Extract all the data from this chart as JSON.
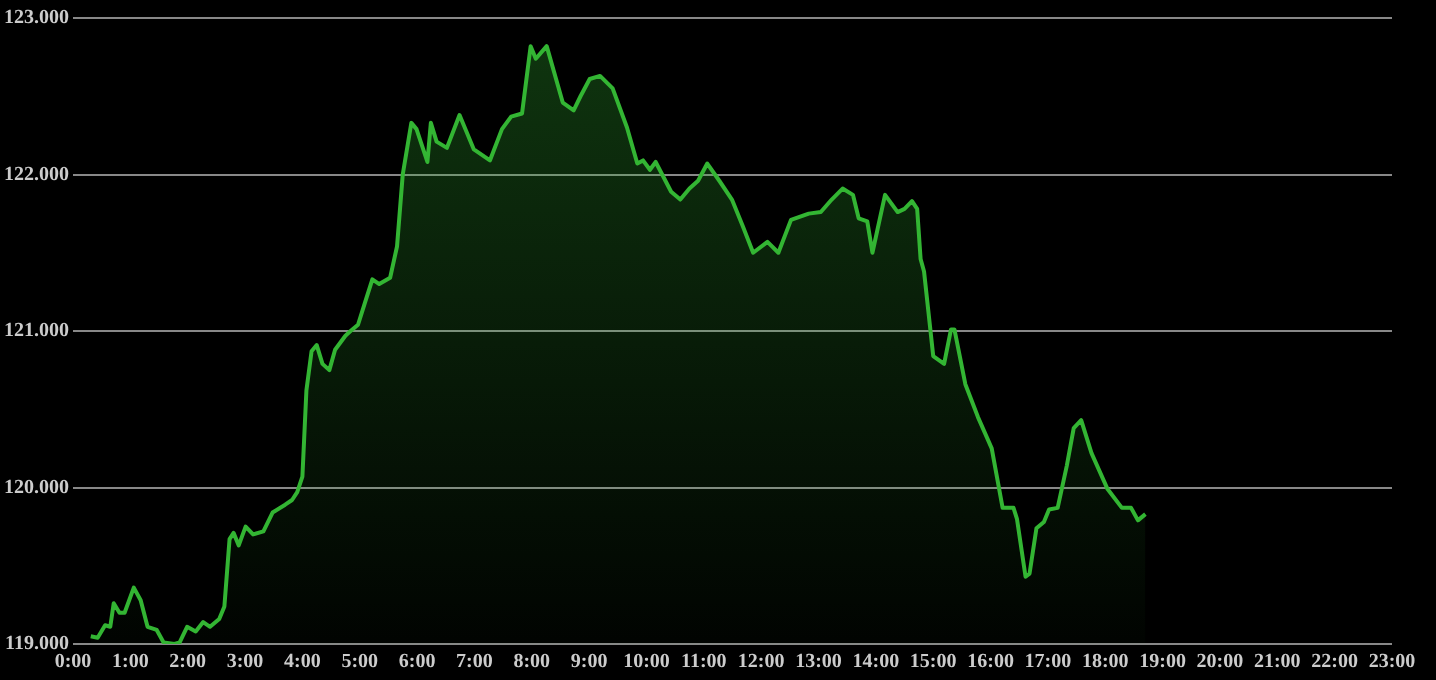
{
  "chart_data": {
    "type": "area",
    "x": [
      0.31,
      0.43,
      0.56,
      0.65,
      0.71,
      0.81,
      0.9,
      1.06,
      1.18,
      1.3,
      1.46,
      1.58,
      1.77,
      1.86,
      1.99,
      2.14,
      2.27,
      2.39,
      2.55,
      2.64,
      2.73,
      2.8,
      2.89,
      3.01,
      3.14,
      3.32,
      3.48,
      3.7,
      3.82,
      3.91,
      4.0,
      4.07,
      4.16,
      4.25,
      4.35,
      4.47,
      4.57,
      4.75,
      4.84,
      4.97,
      5.09,
      5.22,
      5.34,
      5.53,
      5.65,
      5.75,
      5.9,
      5.99,
      6.18,
      6.24,
      6.34,
      6.52,
      6.74,
      6.99,
      7.27,
      7.48,
      7.64,
      7.83,
      7.98,
      8.07,
      8.26,
      8.54,
      8.73,
      8.85,
      9.01,
      9.19,
      9.41,
      9.66,
      9.84,
      9.94,
      10.06,
      10.16,
      10.43,
      10.59,
      10.75,
      10.9,
      11.06,
      11.27,
      11.49,
      11.68,
      11.86,
      12.11,
      12.3,
      12.52,
      12.83,
      13.04,
      13.23,
      13.42,
      13.6,
      13.7,
      13.85,
      13.94,
      14.16,
      14.38,
      14.5,
      14.63,
      14.72,
      14.78,
      14.84,
      15.0,
      15.19,
      15.31,
      15.37,
      15.56,
      15.78,
      16.02,
      16.21,
      16.4,
      16.46,
      16.61,
      16.68,
      16.8,
      16.93,
      17.02,
      17.17,
      17.33,
      17.45,
      17.58,
      17.76,
      18.04,
      18.29,
      18.45,
      18.57,
      18.7
    ],
    "series": [
      {
        "color": "#33b533",
        "values": [
          119.05,
          119.04,
          119.12,
          119.11,
          119.26,
          119.2,
          119.2,
          119.36,
          119.28,
          119.11,
          119.09,
          119.01,
          119.0,
          119.01,
          119.11,
          119.08,
          119.14,
          119.11,
          119.16,
          119.24,
          119.67,
          119.71,
          119.63,
          119.75,
          119.7,
          119.72,
          119.84,
          119.89,
          119.92,
          119.97,
          120.07,
          120.62,
          120.87,
          120.91,
          120.79,
          120.75,
          120.88,
          120.97,
          121.0,
          121.04,
          121.18,
          121.33,
          121.3,
          121.34,
          121.54,
          122.0,
          122.33,
          122.29,
          122.08,
          122.33,
          122.21,
          122.17,
          122.38,
          122.16,
          122.09,
          122.29,
          122.37,
          122.39,
          122.82,
          122.74,
          122.82,
          122.46,
          122.41,
          122.5,
          122.61,
          122.63,
          122.55,
          122.3,
          122.07,
          122.09,
          122.03,
          122.08,
          121.89,
          121.84,
          121.91,
          121.96,
          122.07,
          121.96,
          121.84,
          121.67,
          121.5,
          121.57,
          121.5,
          121.71,
          121.75,
          121.76,
          121.84,
          121.91,
          121.87,
          121.72,
          121.7,
          121.5,
          121.87,
          121.76,
          121.78,
          121.83,
          121.78,
          121.46,
          121.38,
          120.84,
          120.79,
          121.01,
          121.01,
          120.66,
          120.45,
          120.25,
          119.87,
          119.87,
          119.8,
          119.43,
          119.45,
          119.74,
          119.78,
          119.86,
          119.87,
          120.14,
          120.38,
          120.43,
          120.22,
          119.99,
          119.87,
          119.87,
          119.79,
          119.83
        ]
      }
    ],
    "xlim": [
      0,
      23
    ],
    "xticks": [
      {
        "value": 0,
        "label": "0:00"
      },
      {
        "value": 1,
        "label": "1:00"
      },
      {
        "value": 2,
        "label": "2:00"
      },
      {
        "value": 3,
        "label": "3:00"
      },
      {
        "value": 4,
        "label": "4:00"
      },
      {
        "value": 5,
        "label": "5:00"
      },
      {
        "value": 6,
        "label": "6:00"
      },
      {
        "value": 7,
        "label": "7:00"
      },
      {
        "value": 8,
        "label": "8:00"
      },
      {
        "value": 9,
        "label": "9:00"
      },
      {
        "value": 10,
        "label": "10:00"
      },
      {
        "value": 11,
        "label": "11:00"
      },
      {
        "value": 12,
        "label": "12:00"
      },
      {
        "value": 13,
        "label": "13:00"
      },
      {
        "value": 14,
        "label": "14:00"
      },
      {
        "value": 15,
        "label": "15:00"
      },
      {
        "value": 16,
        "label": "16:00"
      },
      {
        "value": 17,
        "label": "17:00"
      },
      {
        "value": 18,
        "label": "18:00"
      },
      {
        "value": 19,
        "label": "19:00"
      },
      {
        "value": 20,
        "label": "20:00"
      },
      {
        "value": 21,
        "label": "21:00"
      },
      {
        "value": 22,
        "label": "22:00"
      },
      {
        "value": 23,
        "label": "23:00"
      }
    ],
    "ylim": [
      119,
      123
    ],
    "yticks": [
      {
        "value": 119,
        "label": "119.000"
      },
      {
        "value": 120,
        "label": "120.000"
      },
      {
        "value": 121,
        "label": "121.000"
      },
      {
        "value": 122,
        "label": "122.000"
      },
      {
        "value": 123,
        "label": "123.000"
      }
    ],
    "grid": "y",
    "legend": false,
    "marker": "none",
    "line_style": "solid"
  }
}
